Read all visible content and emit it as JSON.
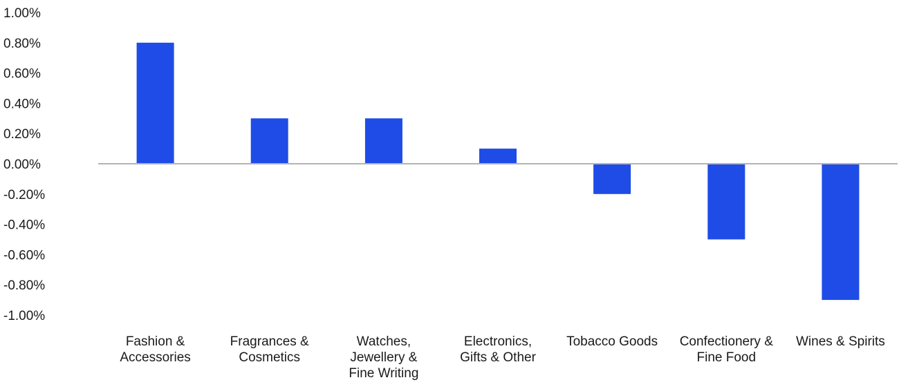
{
  "chart_data": {
    "type": "bar",
    "categories": [
      [
        "Fashion &",
        "Accessories"
      ],
      [
        "Fragrances &",
        "Cosmetics"
      ],
      [
        "Watches,",
        "Jewellery &",
        "Fine Writing"
      ],
      [
        "Electronics,",
        "Gifts & Other"
      ],
      [
        "Tobacco Goods"
      ],
      [
        "Confectionery &",
        "Fine Food"
      ],
      [
        "Wines & Spirits"
      ]
    ],
    "values": [
      0.8,
      0.3,
      0.3,
      0.1,
      -0.2,
      -0.5,
      -0.9
    ],
    "ylim": [
      -1.0,
      1.0
    ],
    "ytick_values": [
      1.0,
      0.8,
      0.6,
      0.4,
      0.2,
      0.0,
      -0.2,
      -0.4,
      -0.6,
      -0.8,
      -1.0
    ],
    "ytick_labels": [
      "1.00%",
      "0.80%",
      "0.60%",
      "0.40%",
      "0.20%",
      "0.00%",
      "-0.20%",
      "-0.40%",
      "-0.60%",
      "-0.80%",
      "-1.00%"
    ],
    "title": "",
    "xlabel": "",
    "ylabel": "",
    "grid": false,
    "legend": "none",
    "bar_color": "#1f4ce6",
    "axis_color": "#b3b3b3"
  }
}
